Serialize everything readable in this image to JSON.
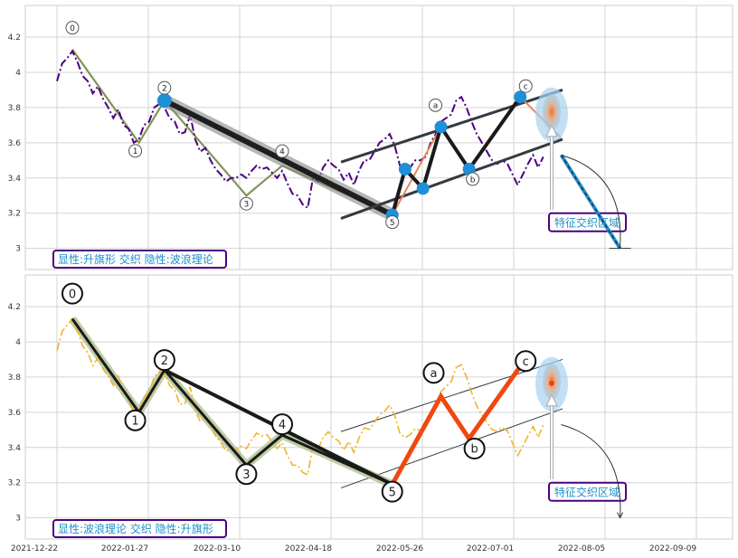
{
  "chart_data": [
    {
      "type": "line",
      "panel": "top",
      "ylim": [
        2.88,
        4.38
      ],
      "y_ticks": [
        3.0,
        3.2,
        3.4,
        3.6,
        3.8,
        4.0,
        4.2
      ],
      "x_range": [
        "2021-12-22",
        "2022-09-25"
      ],
      "grid": true,
      "price_color": "#4b0082",
      "price_series": [
        [
          0,
          3.95
        ],
        [
          2,
          4.05
        ],
        [
          4,
          4.08
        ],
        [
          6,
          4.12
        ],
        [
          8,
          4.06
        ],
        [
          10,
          3.98
        ],
        [
          12,
          3.95
        ],
        [
          14,
          3.88
        ],
        [
          16,
          3.92
        ],
        [
          18,
          3.85
        ],
        [
          20,
          3.8
        ],
        [
          22,
          3.74
        ],
        [
          24,
          3.79
        ],
        [
          26,
          3.7
        ],
        [
          28,
          3.68
        ],
        [
          30,
          3.6
        ],
        [
          32,
          3.62
        ],
        [
          34,
          3.7
        ],
        [
          36,
          3.72
        ],
        [
          38,
          3.8
        ],
        [
          40,
          3.82
        ],
        [
          42,
          3.8
        ],
        [
          44,
          3.74
        ],
        [
          46,
          3.72
        ],
        [
          48,
          3.65
        ],
        [
          50,
          3.66
        ],
        [
          52,
          3.76
        ],
        [
          54,
          3.62
        ],
        [
          56,
          3.55
        ],
        [
          58,
          3.57
        ],
        [
          60,
          3.5
        ],
        [
          62,
          3.45
        ],
        [
          64,
          3.42
        ],
        [
          66,
          3.38
        ],
        [
          68,
          3.4
        ],
        [
          70,
          3.4
        ],
        [
          72,
          3.42
        ],
        [
          74,
          3.4
        ],
        [
          76,
          3.44
        ],
        [
          78,
          3.47
        ],
        [
          80,
          3.45
        ],
        [
          82,
          3.46
        ],
        [
          84,
          3.43
        ],
        [
          86,
          3.4
        ],
        [
          88,
          3.44
        ],
        [
          90,
          3.37
        ],
        [
          92,
          3.31
        ],
        [
          94,
          3.3
        ],
        [
          96,
          3.25
        ],
        [
          98,
          3.23
        ],
        [
          100,
          3.4
        ],
        [
          102,
          3.38
        ],
        [
          104,
          3.46
        ],
        [
          106,
          3.5
        ],
        [
          108,
          3.47
        ],
        [
          110,
          3.45
        ],
        [
          112,
          3.39
        ],
        [
          114,
          3.43
        ],
        [
          116,
          3.36
        ],
        [
          118,
          3.44
        ],
        [
          120,
          3.5
        ],
        [
          122,
          3.5
        ],
        [
          124,
          3.55
        ],
        [
          126,
          3.6
        ],
        [
          128,
          3.62
        ],
        [
          130,
          3.65
        ],
        [
          132,
          3.58
        ],
        [
          134,
          3.47
        ],
        [
          136,
          3.44
        ],
        [
          138,
          3.46
        ],
        [
          140,
          3.5
        ],
        [
          142,
          3.5
        ],
        [
          144,
          3.52
        ],
        [
          146,
          3.6
        ],
        [
          148,
          3.65
        ],
        [
          150,
          3.72
        ],
        [
          152,
          3.74
        ],
        [
          154,
          3.76
        ],
        [
          156,
          3.84
        ],
        [
          158,
          3.86
        ],
        [
          160,
          3.8
        ],
        [
          162,
          3.72
        ],
        [
          164,
          3.65
        ],
        [
          166,
          3.6
        ],
        [
          168,
          3.55
        ],
        [
          170,
          3.5
        ],
        [
          172,
          3.48
        ],
        [
          174,
          3.5
        ],
        [
          176,
          3.48
        ],
        [
          178,
          3.42
        ],
        [
          180,
          3.36
        ],
        [
          182,
          3.42
        ],
        [
          184,
          3.48
        ],
        [
          186,
          3.53
        ],
        [
          188,
          3.46
        ],
        [
          190,
          3.52
        ]
      ],
      "wave_points": [
        {
          "label": "0",
          "x": 6,
          "y": 4.13
        },
        {
          "label": "1",
          "x": 32,
          "y": 3.6
        },
        {
          "label": "2",
          "x": 42,
          "y": 3.84
        },
        {
          "label": "3",
          "x": 74,
          "y": 3.3
        },
        {
          "label": "4",
          "x": 88,
          "y": 3.47
        },
        {
          "label": "5",
          "x": 131,
          "y": 3.19
        },
        {
          "label": "a",
          "x": 150,
          "y": 3.69
        },
        {
          "label": "b",
          "x": 161,
          "y": 3.45
        },
        {
          "label": "c",
          "x": 181,
          "y": 3.86
        }
      ],
      "flag_points": [
        {
          "x": 131,
          "y": 3.19
        },
        {
          "x": 136,
          "y": 3.45
        },
        {
          "x": 143,
          "y": 3.34
        },
        {
          "x": 150,
          "y": 3.69
        },
        {
          "x": 161,
          "y": 3.45
        },
        {
          "x": 181,
          "y": 3.86
        }
      ],
      "projection": {
        "from": {
          "x": 197,
          "y": 3.53
        },
        "to": {
          "x": 220,
          "y": 3.0
        }
      },
      "callout_label": "特征交织区域",
      "box_label": "显性:升旗形 交织 隐性:波浪理论"
    },
    {
      "type": "line",
      "panel": "bottom",
      "ylim": [
        2.88,
        4.38
      ],
      "y_ticks": [
        3.0,
        3.2,
        3.4,
        3.6,
        3.8,
        4.0,
        4.2
      ],
      "x_ticks": [
        "2021-12-22",
        "2022-01-27",
        "2022-03-10",
        "2022-04-18",
        "2022-05-26",
        "2022-07-01",
        "2022-08-05",
        "2022-09-09"
      ],
      "grid": true,
      "price_color": "#f0b429",
      "wave_points": [
        {
          "label": "0",
          "x": 6,
          "y": 4.13
        },
        {
          "label": "1",
          "x": 32,
          "y": 3.6
        },
        {
          "label": "2",
          "x": 42,
          "y": 3.84
        },
        {
          "label": "3",
          "x": 74,
          "y": 3.3
        },
        {
          "label": "4",
          "x": 88,
          "y": 3.47
        },
        {
          "label": "5",
          "x": 131,
          "y": 3.19
        },
        {
          "label": "a",
          "x": 150,
          "y": 3.69
        },
        {
          "label": "b",
          "x": 161,
          "y": 3.45
        },
        {
          "label": "c",
          "x": 181,
          "y": 3.86
        }
      ],
      "callout_label": "特征交织区域",
      "box_label": "显性:波浪理论 交织 隐性:升旗形"
    }
  ]
}
